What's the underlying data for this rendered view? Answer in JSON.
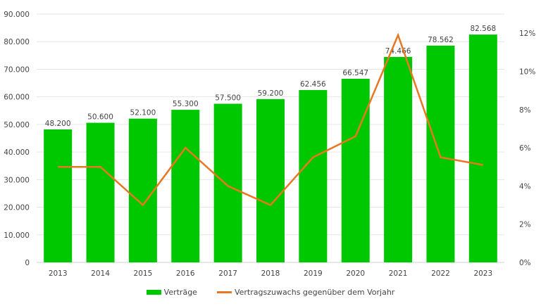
{
  "chart_data": {
    "type": "bar",
    "categories": [
      "2013",
      "2014",
      "2015",
      "2016",
      "2017",
      "2018",
      "2019",
      "2020",
      "2021",
      "2022",
      "2023"
    ],
    "series": [
      {
        "name": "Verträge",
        "type": "bar",
        "axis": "left",
        "color": "#00c800",
        "values": [
          48200,
          50600,
          52100,
          55300,
          57500,
          59200,
          62456,
          66547,
          74466,
          78562,
          82568
        ],
        "labels": [
          "48.200",
          "50.600",
          "52.100",
          "55.300",
          "57.500",
          "59.200",
          "62.456",
          "66.547",
          "74.466",
          "78.562",
          "82.568"
        ]
      },
      {
        "name": "Vertragszuwachs gegenüber dem Vorjahr",
        "type": "line",
        "axis": "right",
        "color": "#e87722",
        "values": [
          5.0,
          5.0,
          3.0,
          6.0,
          4.0,
          3.0,
          5.5,
          6.6,
          11.9,
          5.5,
          5.1
        ]
      }
    ],
    "left_axis": {
      "ylim": [
        0,
        90000
      ],
      "ticks": [
        0,
        10000,
        20000,
        30000,
        40000,
        50000,
        60000,
        70000,
        80000,
        90000
      ],
      "tick_labels": [
        "0",
        "10.000",
        "20.000",
        "30.000",
        "40.000",
        "50.000",
        "60.000",
        "70.000",
        "80.000",
        "90.000"
      ]
    },
    "right_axis": {
      "ylim": [
        0,
        13
      ],
      "ticks": [
        0,
        2,
        4,
        6,
        8,
        10,
        12
      ],
      "tick_labels": [
        "0%",
        "2%",
        "4%",
        "6%",
        "8%",
        "10%",
        "12%"
      ]
    },
    "grid": true,
    "legend": "bottom"
  }
}
